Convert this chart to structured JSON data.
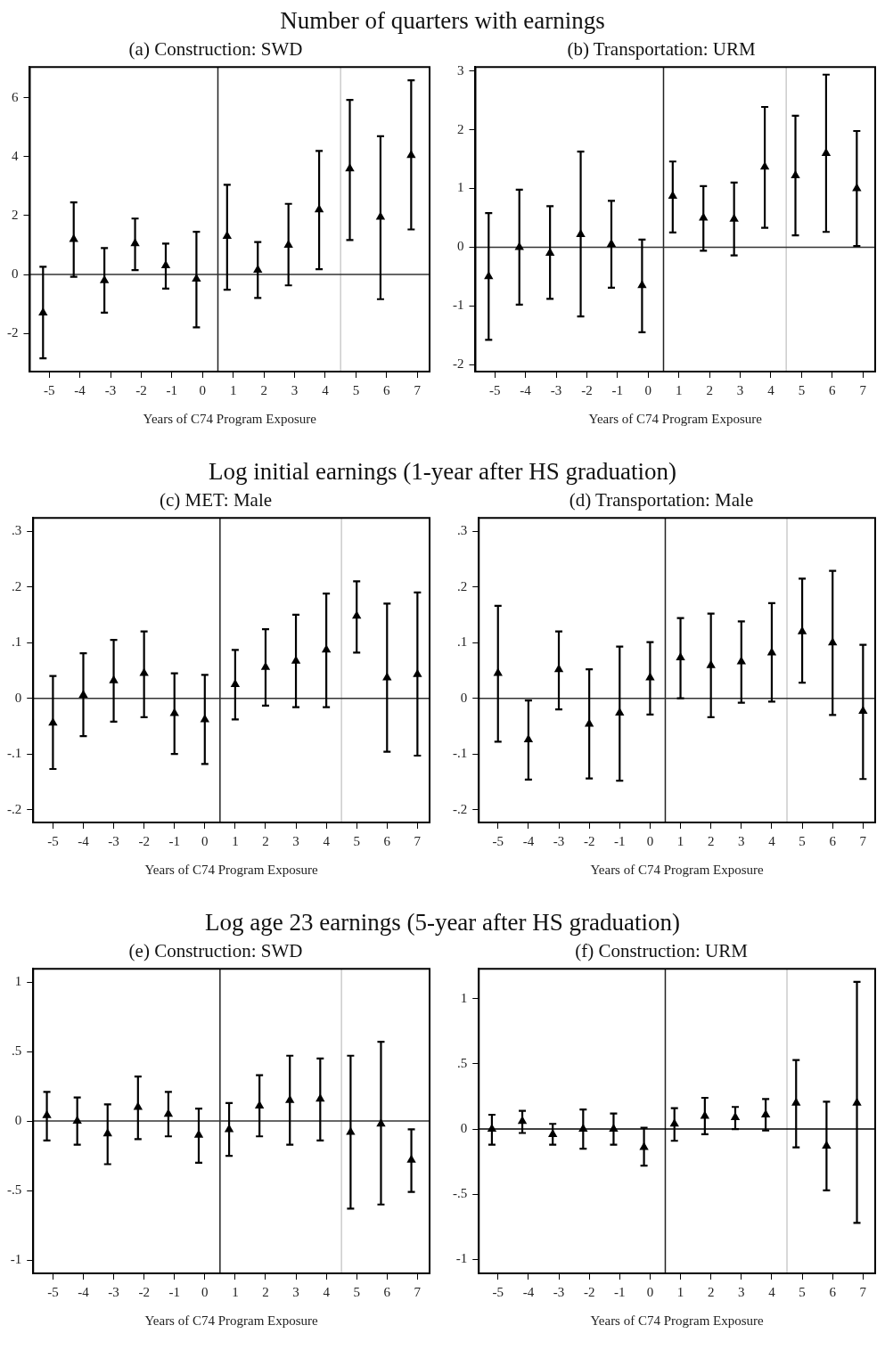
{
  "chart_data": [
    {
      "type": "scatter",
      "title": "Number of quarters with earnings",
      "subtitle": "(a) Construction: SWD",
      "xlabel": "Years of C74 Program Exposure",
      "marker": "triangle",
      "xlim": [
        -5.63,
        7.4
      ],
      "xticks": [
        -5,
        -4,
        -3,
        -2,
        -1,
        0,
        1,
        2,
        3,
        4,
        5,
        6,
        7
      ],
      "ylim": [
        -3.3,
        7.05
      ],
      "yticks": [
        -2,
        0,
        2,
        4,
        6
      ],
      "ref_lines": [
        {
          "axis": "x",
          "value": 0.5,
          "color": "#222222"
        },
        {
          "axis": "x",
          "value": 4.5,
          "color": "#cccccc"
        },
        {
          "axis": "y",
          "value": 0,
          "color": "#333333"
        }
      ],
      "series": [
        {
          "color": "#000000",
          "x": [
            -5.2,
            -4.2,
            -3.2,
            -2.2,
            -1.2,
            -0.2,
            0.8,
            1.8,
            2.8,
            3.8,
            4.8,
            5.8,
            6.8
          ],
          "values": [
            -1.3,
            1.2,
            -0.2,
            1.05,
            0.3,
            -0.15,
            1.3,
            0.15,
            1.0,
            2.2,
            3.6,
            1.95,
            4.05
          ],
          "errors": [
            [
              -2.85,
              0.26
            ],
            [
              -0.08,
              2.45
            ],
            [
              -1.3,
              0.9
            ],
            [
              0.15,
              1.9
            ],
            [
              -0.48,
              1.05
            ],
            [
              -1.8,
              1.45
            ],
            [
              -0.52,
              3.05
            ],
            [
              -0.8,
              1.1
            ],
            [
              -0.37,
              2.4
            ],
            [
              0.18,
              4.2
            ],
            [
              1.17,
              5.93
            ],
            [
              -0.84,
              4.7
            ],
            [
              1.53,
              6.6
            ]
          ]
        }
      ]
    },
    {
      "type": "scatter",
      "title": "(b) Transportation: URM",
      "xlabel": "Years of C74 Program Exposure",
      "marker": "triangle",
      "xlim": [
        -5.63,
        7.4
      ],
      "xticks": [
        -5,
        -4,
        -3,
        -2,
        -1,
        0,
        1,
        2,
        3,
        4,
        5,
        6,
        7
      ],
      "ylim": [
        -2.12,
        3.07
      ],
      "yticks": [
        -2,
        -1,
        0,
        1,
        2,
        3
      ],
      "ref_lines": [
        {
          "axis": "x",
          "value": 0.5,
          "color": "#222222"
        },
        {
          "axis": "x",
          "value": 4.5,
          "color": "#cccccc"
        },
        {
          "axis": "y",
          "value": 0,
          "color": "#333333"
        }
      ],
      "series": [
        {
          "color": "#000000",
          "x": [
            -5.2,
            -4.2,
            -3.2,
            -2.2,
            -1.2,
            -0.2,
            0.8,
            1.8,
            2.8,
            3.8,
            4.8,
            5.8,
            6.8
          ],
          "values": [
            -0.5,
            0.0,
            -0.1,
            0.22,
            0.05,
            -0.65,
            0.87,
            0.5,
            0.48,
            1.37,
            1.22,
            1.6,
            1.0
          ],
          "errors": [
            [
              -1.58,
              0.58
            ],
            [
              -0.98,
              0.98
            ],
            [
              -0.88,
              0.7
            ],
            [
              -1.18,
              1.63
            ],
            [
              -0.69,
              0.79
            ],
            [
              -1.45,
              0.13
            ],
            [
              0.25,
              1.46
            ],
            [
              -0.06,
              1.04
            ],
            [
              -0.14,
              1.1
            ],
            [
              0.33,
              2.39
            ],
            [
              0.2,
              2.24
            ],
            [
              0.26,
              2.94
            ],
            [
              0.02,
              1.98
            ]
          ]
        }
      ]
    },
    {
      "type": "scatter",
      "title": "Log initial earnings (1-year after HS graduation)",
      "subtitle": "(c) MET: Male",
      "xlabel": "Years of C74 Program Exposure",
      "marker": "triangle",
      "xlim": [
        -5.65,
        7.4
      ],
      "xticks": [
        -5,
        -4,
        -3,
        -2,
        -1,
        0,
        1,
        2,
        3,
        4,
        5,
        6,
        7
      ],
      "ylim": [
        -0.223,
        0.324
      ],
      "yticks": [
        {
          "value": -0.2,
          "label": "-.2"
        },
        {
          "value": -0.1,
          "label": "-.1"
        },
        0,
        {
          "value": 0.1,
          "label": ".1"
        },
        {
          "value": 0.2,
          "label": ".2"
        },
        {
          "value": 0.3,
          "label": ".3"
        }
      ],
      "ref_lines": [
        {
          "axis": "x",
          "value": 0.5,
          "color": "#222222"
        },
        {
          "axis": "x",
          "value": 4.5,
          "color": "#cccccc"
        },
        {
          "axis": "y",
          "value": 0,
          "color": "#333333"
        }
      ],
      "series": [
        {
          "color": "#000000",
          "x": [
            -5,
            -4,
            -3,
            -2,
            -1,
            0,
            1,
            2,
            3,
            4,
            5,
            6,
            7
          ],
          "values": [
            -0.044,
            0.006,
            0.032,
            0.045,
            -0.027,
            -0.038,
            0.025,
            0.056,
            0.067,
            0.087,
            0.148,
            0.037,
            0.043
          ],
          "errors": [
            [
              -0.127,
              0.04
            ],
            [
              -0.068,
              0.081
            ],
            [
              -0.042,
              0.105
            ],
            [
              -0.034,
              0.12
            ],
            [
              -0.1,
              0.045
            ],
            [
              -0.118,
              0.042
            ],
            [
              -0.038,
              0.087
            ],
            [
              -0.013,
              0.124
            ],
            [
              -0.016,
              0.15
            ],
            [
              -0.016,
              0.188
            ],
            [
              0.082,
              0.21
            ],
            [
              -0.096,
              0.17
            ],
            [
              -0.103,
              0.19
            ]
          ]
        }
      ]
    },
    {
      "type": "scatter",
      "title": "(d) Transportation: Male",
      "xlabel": "Years of C74 Program Exposure",
      "marker": "triangle",
      "xlim": [
        -5.63,
        7.4
      ],
      "xticks": [
        -5,
        -4,
        -3,
        -2,
        -1,
        0,
        1,
        2,
        3,
        4,
        5,
        6,
        7
      ],
      "ylim": [
        -0.223,
        0.324
      ],
      "yticks": [
        {
          "value": -0.2,
          "label": "-.2"
        },
        {
          "value": -0.1,
          "label": "-.1"
        },
        0,
        {
          "value": 0.1,
          "label": ".1"
        },
        {
          "value": 0.2,
          "label": ".2"
        },
        {
          "value": 0.3,
          "label": ".3"
        }
      ],
      "ref_lines": [
        {
          "axis": "x",
          "value": 0.5,
          "color": "#222222"
        },
        {
          "axis": "x",
          "value": 4.5,
          "color": "#cccccc"
        },
        {
          "axis": "y",
          "value": 0,
          "color": "#333333"
        }
      ],
      "series": [
        {
          "color": "#000000",
          "x": [
            -5,
            -4,
            -3,
            -2,
            -1,
            0,
            1,
            2,
            3,
            4,
            5,
            6,
            7
          ],
          "values": [
            0.045,
            -0.074,
            0.052,
            -0.046,
            -0.026,
            0.037,
            0.073,
            0.059,
            0.066,
            0.082,
            0.12,
            0.1,
            -0.023
          ],
          "errors": [
            [
              -0.078,
              0.166
            ],
            [
              -0.146,
              -0.004
            ],
            [
              -0.02,
              0.12
            ],
            [
              -0.144,
              0.052
            ],
            [
              -0.148,
              0.093
            ],
            [
              -0.029,
              0.101
            ],
            [
              0,
              0.144
            ],
            [
              -0.034,
              0.152
            ],
            [
              -0.008,
              0.138
            ],
            [
              -0.006,
              0.171
            ],
            [
              0.028,
              0.215
            ],
            [
              -0.03,
              0.229
            ],
            [
              -0.145,
              0.096
            ]
          ]
        }
      ]
    },
    {
      "type": "scatter",
      "title": "Log age 23 earnings (5-year after HS graduation)",
      "subtitle": "(e) Construction: SWD",
      "xlabel": "Years of C74 Program Exposure",
      "marker": "triangle",
      "xlim": [
        -5.65,
        7.4
      ],
      "xticks": [
        -5,
        -4,
        -3,
        -2,
        -1,
        0,
        1,
        2,
        3,
        4,
        5,
        6,
        7
      ],
      "ylim": [
        -1.095,
        1.095
      ],
      "yticks": [
        -1,
        {
          "value": -0.5,
          "label": "-.5"
        },
        0,
        {
          "value": 0.5,
          "label": ".5"
        },
        1
      ],
      "ref_lines": [
        {
          "axis": "x",
          "value": 0.5,
          "color": "#222222"
        },
        {
          "axis": "x",
          "value": 4.5,
          "color": "#cccccc"
        },
        {
          "axis": "y",
          "value": 0,
          "color": "#333333"
        }
      ],
      "series": [
        {
          "color": "#000000",
          "x": [
            -5.2,
            -4.2,
            -3.2,
            -2.2,
            -1.2,
            -0.2,
            0.8,
            1.8,
            2.8,
            3.8,
            4.8,
            5.8,
            6.8
          ],
          "values": [
            0.04,
            0.0,
            -0.09,
            0.1,
            0.05,
            -0.1,
            -0.06,
            0.11,
            0.15,
            0.16,
            -0.08,
            -0.02,
            -0.28
          ],
          "errors": [
            [
              -0.14,
              0.21
            ],
            [
              -0.17,
              0.17
            ],
            [
              -0.31,
              0.12
            ],
            [
              -0.13,
              0.32
            ],
            [
              -0.11,
              0.21
            ],
            [
              -0.3,
              0.09
            ],
            [
              -0.25,
              0.13
            ],
            [
              -0.11,
              0.33
            ],
            [
              -0.17,
              0.47
            ],
            [
              -0.14,
              0.45
            ],
            [
              -0.63,
              0.47
            ],
            [
              -0.6,
              0.57
            ],
            [
              -0.51,
              -0.06
            ]
          ]
        }
      ]
    },
    {
      "type": "scatter",
      "title": "(f) Construction: URM",
      "xlabel": "Years of C74 Program Exposure",
      "marker": "triangle",
      "xlim": [
        -5.63,
        7.4
      ],
      "xticks": [
        -5,
        -4,
        -3,
        -2,
        -1,
        0,
        1,
        2,
        3,
        4,
        5,
        6,
        7
      ],
      "ylim": [
        -1.107,
        1.23
      ],
      "yticks": [
        -1,
        {
          "value": -0.5,
          "label": "-.5"
        },
        0,
        {
          "value": 0.5,
          "label": ".5"
        },
        1
      ],
      "ref_lines": [
        {
          "axis": "x",
          "value": 0.5,
          "color": "#222222"
        },
        {
          "axis": "x",
          "value": 4.5,
          "color": "#cccccc"
        },
        {
          "axis": "y",
          "value": 0,
          "color": "#000000"
        }
      ],
      "series": [
        {
          "color": "#000000",
          "x": [
            -5.2,
            -4.2,
            -3.2,
            -2.2,
            -1.2,
            -0.2,
            0.8,
            1.8,
            2.8,
            3.8,
            4.8,
            5.8,
            6.8
          ],
          "values": [
            0.0,
            0.06,
            -0.04,
            0.0,
            0.0,
            -0.14,
            0.04,
            0.1,
            0.09,
            0.11,
            0.2,
            -0.13,
            0.2
          ],
          "errors": [
            [
              -0.12,
              0.11
            ],
            [
              -0.03,
              0.14
            ],
            [
              -0.12,
              0.04
            ],
            [
              -0.15,
              0.15
            ],
            [
              -0.12,
              0.12
            ],
            [
              -0.28,
              0.01
            ],
            [
              -0.09,
              0.16
            ],
            [
              -0.04,
              0.24
            ],
            [
              0.0,
              0.17
            ],
            [
              -0.01,
              0.23
            ],
            [
              -0.14,
              0.53
            ],
            [
              -0.47,
              0.21
            ],
            [
              -0.72,
              1.13
            ]
          ]
        }
      ]
    }
  ]
}
